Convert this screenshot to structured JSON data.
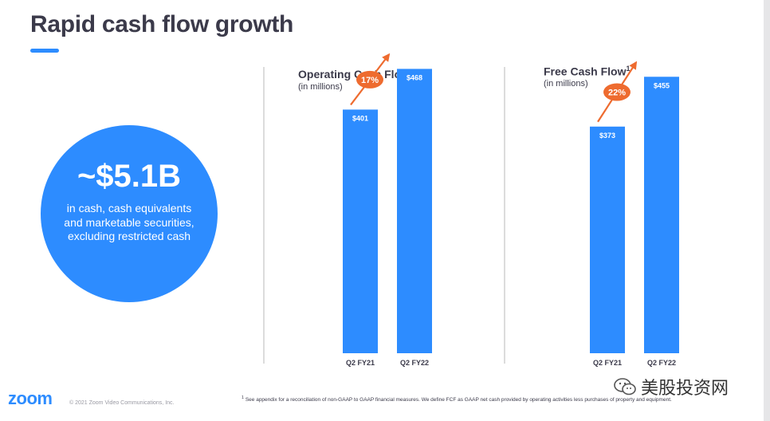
{
  "header": {
    "title": "Rapid cash flow growth"
  },
  "highlight": {
    "amount": "~$5.1B",
    "description": "in cash, cash equivalents and marketable securities, excluding restricted cash"
  },
  "chart_data": [
    {
      "type": "bar",
      "title": "Operating Cash Flow",
      "subtitle": "(in millions)",
      "categories": [
        "Q2 FY21",
        "Q2 FY22"
      ],
      "values": [
        401,
        468
      ],
      "value_labels": [
        "$401",
        "$468"
      ],
      "growth_label": "17%",
      "ylim": [
        0,
        500
      ],
      "grid": false
    },
    {
      "type": "bar",
      "title": "Free Cash Flow",
      "title_superscript": "1",
      "subtitle": "(in millions)",
      "categories": [
        "Q2 FY21",
        "Q2 FY22"
      ],
      "values": [
        373,
        455
      ],
      "value_labels": [
        "$373",
        "$455"
      ],
      "growth_label": "22%",
      "ylim": [
        0,
        500
      ],
      "grid": false
    }
  ],
  "colors": {
    "bar": "#2d8cff",
    "accent": "#ee6b2f",
    "text": "#3b3a4a"
  },
  "footer": {
    "logo": "zoom",
    "copyright": "© 2021 Zoom Video Communications, Inc.",
    "footnote_marker": "1",
    "footnote": "See appendix for a reconciliation of non-GAAP to GAAP financial measures. We define FCF as GAAP net cash provided by operating activities less purchases of property and equipment.",
    "watermark": "美股投资网"
  }
}
